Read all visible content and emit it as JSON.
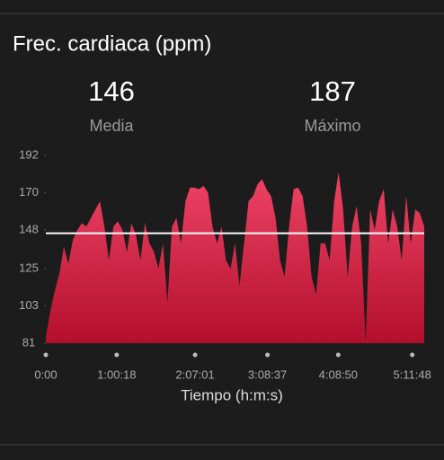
{
  "header": {
    "title": "Frec. cardiaca (ppm)"
  },
  "stats": [
    {
      "value": 146,
      "label": "Media"
    },
    {
      "value": 187,
      "label": "Máximo"
    }
  ],
  "chart_data": {
    "type": "area",
    "x_label": "Tiempo (h:m:s)",
    "x": [
      0,
      230,
      460,
      690,
      920,
      1150,
      1380,
      1610,
      1840,
      2070,
      2300,
      2530,
      2760,
      2990,
      3220,
      3450,
      3680,
      3910,
      4140,
      4370,
      4600,
      4830,
      5060,
      5290,
      5520,
      5750,
      5980,
      6210,
      6440,
      6670,
      6900,
      7130,
      7360,
      7590,
      7820,
      8050,
      8280,
      8510,
      8740,
      8970,
      9200,
      9430,
      9660,
      9890,
      10120,
      10350,
      10580,
      10810,
      11040,
      11270,
      11500,
      11730,
      11960,
      12190,
      12420,
      12650,
      12880,
      13110,
      13340,
      13570,
      13800,
      14030,
      14260,
      14490,
      14720,
      14950,
      15180,
      15410,
      15640,
      15870,
      16100,
      16330,
      16560,
      16790,
      17020,
      17250,
      17480,
      17710,
      17940,
      18170,
      18400,
      18630,
      18860,
      19090,
      19320
    ],
    "values": [
      85,
      100,
      112,
      122,
      138,
      128,
      142,
      148,
      152,
      150,
      155,
      160,
      165,
      150,
      130,
      150,
      153,
      148,
      135,
      152,
      145,
      130,
      152,
      140,
      135,
      125,
      140,
      105,
      150,
      155,
      140,
      165,
      173,
      173,
      172,
      174,
      170,
      150,
      140,
      150,
      130,
      125,
      140,
      115,
      140,
      165,
      168,
      175,
      178,
      172,
      168,
      155,
      130,
      120,
      150,
      172,
      173,
      168,
      150,
      120,
      110,
      140,
      140,
      130,
      165,
      182,
      160,
      120,
      150,
      162,
      140,
      82,
      160,
      148,
      165,
      172,
      140,
      160,
      150,
      130,
      168,
      140,
      160,
      158,
      150
    ],
    "color": "#e23455",
    "xlim": [
      0,
      19320
    ],
    "ylim": [
      81,
      192
    ],
    "yticks": [
      81,
      103,
      125,
      148,
      170,
      192
    ],
    "xticks": [
      {
        "value": 0,
        "label": "0:00"
      },
      {
        "value": 3618,
        "label": "1:00:18"
      },
      {
        "value": 7621,
        "label": "2:07:01"
      },
      {
        "value": 11317,
        "label": "3:08:37"
      },
      {
        "value": 14930,
        "label": "4:08:50"
      },
      {
        "value": 18708,
        "label": "5:11:48"
      }
    ]
  }
}
